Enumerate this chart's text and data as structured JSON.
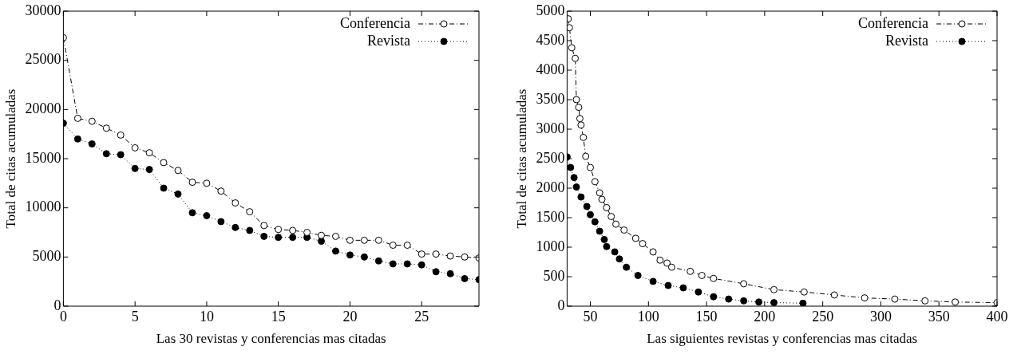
{
  "chart_data": [
    {
      "type": "line",
      "xlabel": "Las 30 revistas y conferencias mas citadas",
      "ylabel": "Total de citas acumuladas",
      "xlim": [
        0,
        29
      ],
      "xticks": [
        0,
        5,
        10,
        15,
        20,
        25
      ],
      "ylim": [
        0,
        30000
      ],
      "yticks": [
        0,
        5000,
        10000,
        15000,
        20000,
        25000,
        30000
      ],
      "grid": false,
      "legend": "top right",
      "marker": "circle",
      "x": [
        0,
        1,
        2,
        3,
        4,
        5,
        6,
        7,
        8,
        9,
        10,
        11,
        12,
        13,
        14,
        15,
        16,
        17,
        18,
        19,
        20,
        21,
        22,
        23,
        24,
        25,
        26,
        27,
        28,
        29
      ],
      "series": [
        {
          "name": "Conferencia",
          "color": "#000000",
          "line_style": "dashed",
          "values": [
            27300,
            19100,
            18800,
            18100,
            17400,
            16100,
            15600,
            14600,
            13800,
            12600,
            12500,
            11700,
            10500,
            9600,
            8200,
            7800,
            7700,
            7500,
            7200,
            7100,
            6700,
            6700,
            6700,
            6200,
            6200,
            5300,
            5300,
            5100,
            5000,
            4900
          ]
        },
        {
          "name": "Revista",
          "color": "#000000",
          "line_style": "dotted",
          "values": [
            18600,
            17000,
            16500,
            15500,
            15400,
            14000,
            13900,
            12000,
            11400,
            9500,
            9200,
            8600,
            8000,
            7700,
            7100,
            7000,
            7000,
            7000,
            6600,
            5600,
            5200,
            5000,
            4600,
            4300,
            4300,
            4200,
            3500,
            3300,
            2800,
            2700
          ]
        }
      ]
    },
    {
      "type": "line",
      "xlabel": "Las siguientes revistas y conferencias mas citadas",
      "ylabel": "Total de citas acumuladas",
      "xlim": [
        30,
        400
      ],
      "xticks": [
        50,
        100,
        150,
        200,
        250,
        300,
        350,
        400
      ],
      "ylim": [
        0,
        5000
      ],
      "yticks": [
        0,
        500,
        1000,
        1500,
        2000,
        2500,
        3000,
        3500,
        4000,
        4500,
        5000
      ],
      "grid": false,
      "legend": "top right",
      "marker": "circle",
      "series": [
        {
          "name": "Conferencia",
          "color": "#000000",
          "line_style": "dashed",
          "x": [
            31,
            32,
            34,
            37,
            38,
            40,
            41,
            42,
            44,
            46,
            50,
            54,
            58,
            60,
            64,
            68,
            72,
            79,
            89,
            95,
            104,
            110,
            116,
            120,
            136,
            146,
            156,
            182,
            208,
            234,
            260,
            286,
            312,
            338,
            364,
            400
          ],
          "values": [
            4870,
            4720,
            4380,
            4200,
            3500,
            3370,
            3180,
            3070,
            2860,
            2540,
            2350,
            2110,
            1920,
            1810,
            1670,
            1520,
            1390,
            1290,
            1150,
            1060,
            920,
            780,
            730,
            660,
            590,
            520,
            470,
            380,
            280,
            240,
            190,
            140,
            120,
            90,
            70,
            60
          ]
        },
        {
          "name": "Revista",
          "color": "#000000",
          "line_style": "dotted",
          "x": [
            30,
            33,
            36,
            38,
            42,
            47,
            50,
            54,
            58,
            62,
            64,
            71,
            75,
            81,
            91,
            104,
            117,
            130,
            143,
            156,
            169,
            182,
            195,
            208,
            233
          ],
          "values": [
            2530,
            2350,
            2180,
            2020,
            1850,
            1690,
            1550,
            1430,
            1270,
            1130,
            1010,
            920,
            800,
            660,
            520,
            420,
            350,
            310,
            240,
            160,
            120,
            90,
            70,
            60,
            50
          ]
        }
      ]
    }
  ]
}
